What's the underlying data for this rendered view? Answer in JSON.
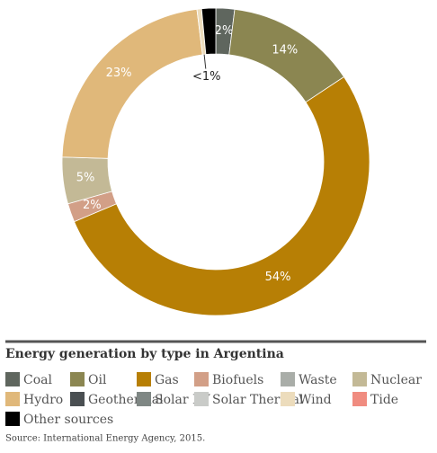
{
  "chart_data": {
    "type": "donut",
    "title": "Energy generation by type in Argentina",
    "source": "Source: International Energy Agency, 2015.",
    "categories": [
      "Coal",
      "Oil",
      "Gas",
      "Biofuels",
      "Waste",
      "Nuclear",
      "Hydro",
      "Geothermal",
      "Solar PV",
      "Solar Thermal",
      "Wind",
      "Tide",
      "Other sources"
    ],
    "values": [
      2,
      14,
      54,
      2,
      0,
      5,
      23,
      0,
      0,
      0,
      0.5,
      0,
      1.5
    ],
    "value_labels": [
      "2%",
      "14%",
      "54%",
      "2%",
      null,
      "5%",
      "23%",
      null,
      null,
      null,
      "<1%",
      null,
      null
    ],
    "colors": [
      "#5f665e",
      "#8b8651",
      "#b77f05",
      "#d29f87",
      "#a9ada8",
      "#c3b996",
      "#e0b87a",
      "#4a4f52",
      "#7f8784",
      "#c9cbc8",
      "#ecdcbc",
      "#f08c80",
      "#000000"
    ]
  }
}
